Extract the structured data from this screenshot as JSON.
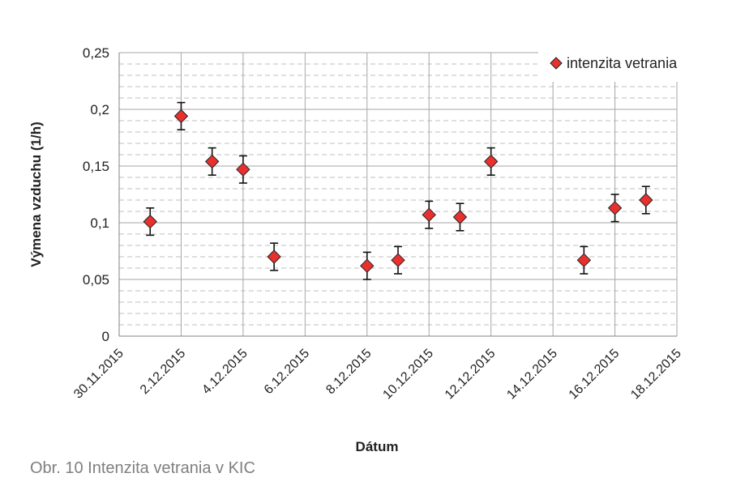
{
  "chart_data": {
    "type": "scatter",
    "title": "",
    "xlabel": "Dátum",
    "ylabel": "Výmena vzduchu (1/h)",
    "xlim": [
      "30.11.2015",
      "18.12.2015"
    ],
    "ylim": [
      0,
      0.25
    ],
    "y_ticks": [
      "0",
      "0,05",
      "0,1",
      "0,15",
      "0,2",
      "0,25"
    ],
    "x_ticks": [
      "30.11.2015",
      "2.12.2015",
      "4.12.2015",
      "6.12.2015",
      "8.12.2015",
      "10.12.2015",
      "12.12.2015",
      "14.12.2015",
      "16.12.2015",
      "18.12.2015"
    ],
    "grid": true,
    "legend_position": "top-right",
    "series": [
      {
        "name": "intenzita vetrania",
        "color": "#e8312f",
        "marker": "diamond",
        "points": [
          {
            "day": 1,
            "y": 0.101,
            "err": 0.012
          },
          {
            "day": 2,
            "y": 0.194,
            "err": 0.012
          },
          {
            "day": 3,
            "y": 0.154,
            "err": 0.012
          },
          {
            "day": 4,
            "y": 0.147,
            "err": 0.012
          },
          {
            "day": 5,
            "y": 0.07,
            "err": 0.012
          },
          {
            "day": 8,
            "y": 0.062,
            "err": 0.012
          },
          {
            "day": 9,
            "y": 0.067,
            "err": 0.012
          },
          {
            "day": 10,
            "y": 0.107,
            "err": 0.012
          },
          {
            "day": 11,
            "y": 0.105,
            "err": 0.012
          },
          {
            "day": 12,
            "y": 0.154,
            "err": 0.012
          },
          {
            "day": 15,
            "y": 0.067,
            "err": 0.012
          },
          {
            "day": 16,
            "y": 0.113,
            "err": 0.012
          },
          {
            "day": 17,
            "y": 0.12,
            "err": 0.012
          }
        ]
      }
    ],
    "x_note": "day = days since 30.11.2015"
  },
  "caption": "Obr. 10 Intenzita vetrania v KIC"
}
